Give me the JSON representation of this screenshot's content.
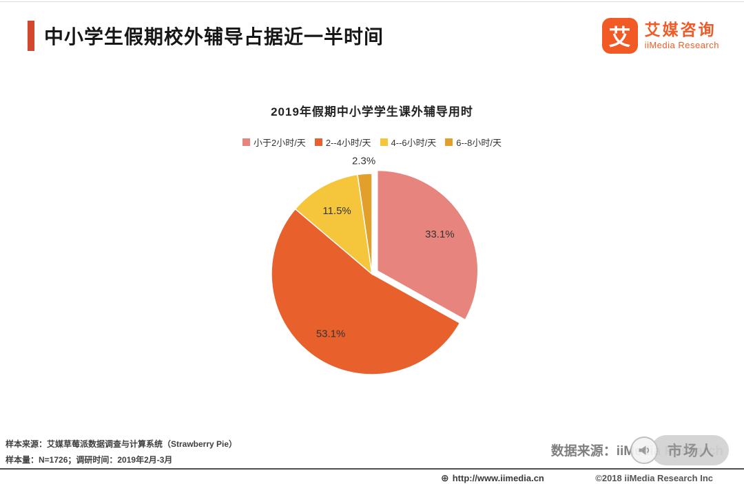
{
  "header": {
    "title": "中小学生假期校外辅导占据近一半时间",
    "accent_color": "#d2482e"
  },
  "logo": {
    "symbol": "艾",
    "name_cn": "艾媒咨询",
    "name_en": "iiMedia Research",
    "brand_color": "#f15a24"
  },
  "chart_data": {
    "type": "pie",
    "title": "2019年假期中小学学生课外辅导用时",
    "legend_position": "top",
    "direction": "clockwise",
    "start_angle_deg": 0,
    "slices": [
      {
        "label": "小于2小时/天",
        "value": 33.1,
        "color": "#e8847e",
        "exploded": true
      },
      {
        "label": "2--4小时/天",
        "value": 53.1,
        "color": "#e8602c"
      },
      {
        "label": "4--6小时/天",
        "value": 11.5,
        "color": "#f5c63c"
      },
      {
        "label": "6--8小时/天",
        "value": 2.3,
        "color": "#e2a02b",
        "label_outside": true
      }
    ]
  },
  "footnotes": {
    "line1": "样本来源：艾媒草莓派数据调查与计算系统（Strawberry Pie）",
    "line2": "样本量：N=1726；调研时间：2019年2月-3月",
    "data_source": "数据来源：iiMedia Research"
  },
  "watermark": {
    "text": "市场人"
  },
  "footer": {
    "url": "http://www.iimedia.cn",
    "copyright": "©2018 iiMedia Research Inc"
  },
  "icons": {
    "globe": "⊕"
  }
}
